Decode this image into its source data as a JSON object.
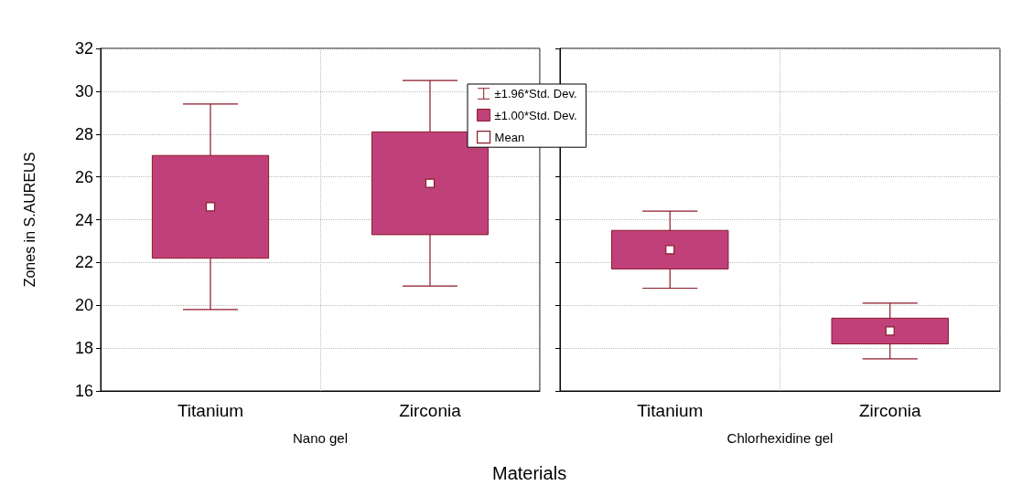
{
  "chart_data": [
    {
      "type": "bar",
      "xlabel": "Nano gel",
      "ylabel": "Zones in S.AUREUS",
      "categories": [
        "Titanium",
        "Zirconia"
      ],
      "ylim": [
        16,
        32
      ],
      "yticks": [
        16,
        18,
        20,
        22,
        24,
        26,
        28,
        30,
        32
      ],
      "grid": true,
      "legend": "top right",
      "annotations": [
        "Materials"
      ],
      "series": [
        {
          "name": "±1.96*Std. Dev.",
          "type": "scatter",
          "marker": "none",
          "color": "#8b1a2a",
          "values": [
            null,
            null
          ]
        },
        {
          "name": "±1.00*Std. Dev.",
          "color": "#c0417a",
          "base": [
            22.2,
            23.3
          ],
          "values": [
            4.8,
            4.8
          ]
        },
        {
          "name": "Mean",
          "type": "scatter",
          "marker": "square",
          "color": "#8b1a2a",
          "x": [
            "Titanium",
            "Zirconia"
          ],
          "values": [
            24.6,
            25.7
          ],
          "errors": [
            4.8,
            4.8
          ]
        }
      ]
    },
    {
      "type": "bar",
      "xlabel": "Chlorhexidine gel",
      "categories": [
        "Titanium",
        "Zirconia"
      ],
      "ylim": [
        16,
        32
      ],
      "yticks": [
        16,
        18,
        20,
        22,
        24,
        26,
        28,
        30,
        32
      ],
      "grid": true,
      "tick_labels": "x",
      "series": [
        {
          "color": "#c0417a",
          "base": [
            21.7,
            18.2
          ],
          "values": [
            1.8,
            1.2
          ]
        },
        {
          "type": "scatter",
          "marker": "square",
          "color": "#8b1a2a",
          "x": [
            "Titanium",
            "Zirconia"
          ],
          "values": [
            22.6,
            18.8
          ],
          "errors": [
            1.8,
            1.3
          ]
        }
      ]
    }
  ]
}
